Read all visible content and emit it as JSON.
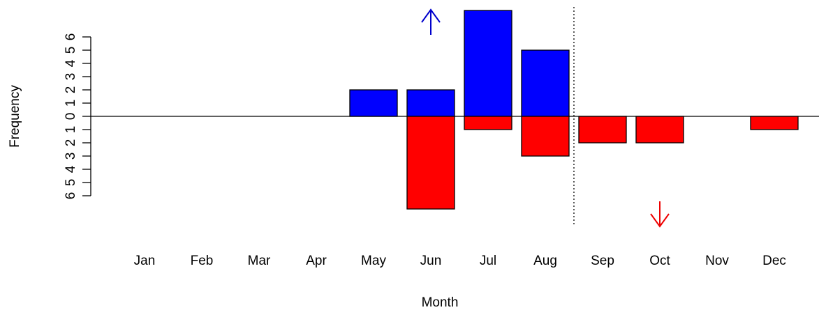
{
  "chart_data": {
    "type": "bar",
    "x_label": "Month",
    "y_label": "Frequency",
    "categories": [
      "Jan",
      "Feb",
      "Mar",
      "Apr",
      "May",
      "Jun",
      "Jul",
      "Aug",
      "Sep",
      "Oct",
      "Nov",
      "Dec"
    ],
    "series": [
      {
        "color": "#0000ff",
        "values": [
          0,
          0,
          0,
          0,
          2,
          2,
          8,
          5,
          0,
          0,
          0,
          0
        ]
      },
      {
        "color": "#ff0000",
        "values": [
          0,
          0,
          0,
          0,
          0,
          -7,
          -1,
          -3,
          -2,
          -2,
          0,
          -1
        ]
      }
    ],
    "ylim": [
      -8,
      8
    ],
    "yticks": [
      {
        "value": -6,
        "label": "6"
      },
      {
        "value": -5,
        "label": "5"
      },
      {
        "value": -4,
        "label": "4"
      },
      {
        "value": -3,
        "label": "3"
      },
      {
        "value": -2,
        "label": "2"
      },
      {
        "value": -1,
        "label": "1"
      },
      0,
      1,
      2,
      3,
      4,
      5,
      6
    ]
  }
}
